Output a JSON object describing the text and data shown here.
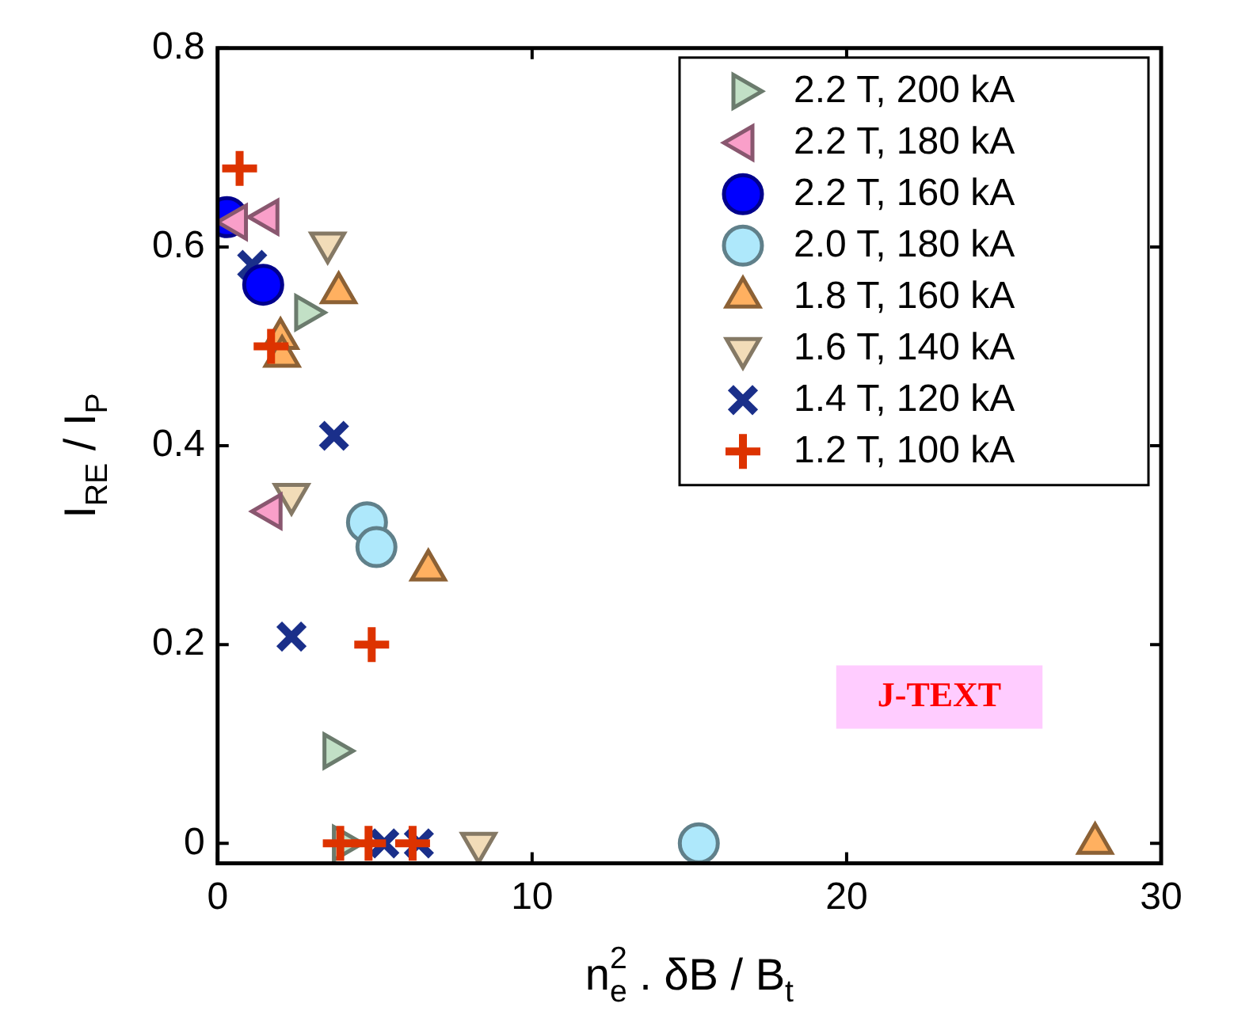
{
  "chart_data": {
    "type": "scatter",
    "xlabel": "n$_{e}$$^{2}$ . δB / B$_{t}$",
    "ylabel": "I$_{RE}$ / I$_{P}$",
    "xlim": [
      0,
      30
    ],
    "ylim": [
      -0.02,
      0.8
    ],
    "xticks": [
      0,
      10,
      20,
      30
    ],
    "yticks": [
      0,
      0.2,
      0.4,
      0.6,
      0.8
    ],
    "legend": "top right",
    "annotations": [
      "J-TEXT"
    ],
    "series": [
      {
        "name": "2.2 T, 200 kA",
        "marker": "triangle-right",
        "color": "#c2e0c6",
        "x": [
          2.8,
          3.7,
          4.0
        ],
        "values": [
          0.534,
          0.093,
          0
        ]
      },
      {
        "name": "2.2 T, 180 kA",
        "marker": "triangle-left",
        "color": "#f99fc9",
        "x": [
          0.6,
          1.6,
          1.7
        ],
        "values": [
          0.625,
          0.63,
          0.334
        ]
      },
      {
        "name": "2.2 T, 160 kA",
        "marker": "circle",
        "color": "#0000ff",
        "x": [
          0.3,
          1.45
        ],
        "values": [
          0.63,
          0.562
        ]
      },
      {
        "name": "2.0 T, 180 kA",
        "marker": "circle",
        "color": "#aee8fb",
        "x": [
          4.75,
          5.05,
          15.3
        ],
        "values": [
          0.323,
          0.298,
          0
        ]
      },
      {
        "name": "1.8 T, 160 kA",
        "marker": "triangle",
        "color": "#ffb060",
        "x": [
          3.85,
          2.0,
          2.05,
          6.7,
          27.9
        ],
        "values": [
          0.554,
          0.508,
          0.49,
          0.275,
          0
        ]
      },
      {
        "name": "1.6 T, 140 kA",
        "marker": "triangle-down",
        "color": "#f2dcb8",
        "x": [
          3.5,
          2.35,
          8.3
        ],
        "values": [
          0.604,
          0.351,
          0
        ]
      },
      {
        "name": "1.4 T, 120 kA",
        "marker": "x",
        "color": "#1a2f8a",
        "x": [
          1.1,
          3.7,
          2.35,
          5.3,
          6.4
        ],
        "values": [
          0.582,
          0.41,
          0.208,
          0,
          0
        ]
      },
      {
        "name": "1.2 T, 100 kA",
        "marker": "cross",
        "color": "#dd3300",
        "x": [
          0.7,
          1.7,
          4.9,
          3.9,
          4.8,
          6.2
        ],
        "values": [
          0.679,
          0.5,
          0.2,
          0,
          0,
          0
        ]
      }
    ]
  }
}
